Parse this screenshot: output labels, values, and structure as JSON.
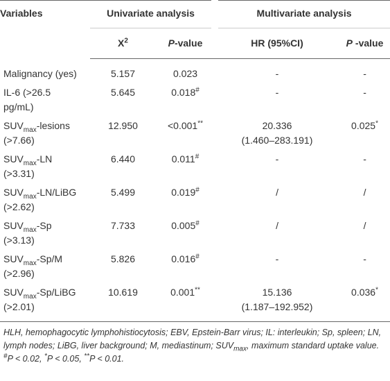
{
  "header": {
    "variables": [
      [
        {
          "text": "Variables"
        }
      ]
    ],
    "groups": [
      [
        [
          {
            "text": "Univariate analysis"
          }
        ]
      ],
      [
        [
          {
            "text": "Multivariate analysis"
          }
        ]
      ]
    ],
    "columns": [
      [
        [
          {
            "text": "X"
          },
          {
            "text": "2",
            "style": "sup"
          }
        ]
      ],
      [
        [
          {
            "text": "P",
            "style": "italic"
          },
          {
            "text": "-value"
          }
        ]
      ],
      [
        [
          {
            "text": "HR (95%CI)"
          }
        ]
      ],
      [
        [
          {
            "text": "P",
            "style": "italic"
          },
          {
            "text": " -value"
          }
        ]
      ]
    ]
  },
  "rows": [
    [
      [
        [
          {
            "text": "Malignancy (yes)"
          }
        ]
      ],
      [
        [
          {
            "text": "5.157"
          }
        ]
      ],
      [
        [
          {
            "text": "0.023"
          }
        ]
      ],
      [
        [
          {
            "text": "-"
          }
        ]
      ],
      [
        [
          {
            "text": "-"
          }
        ]
      ]
    ],
    [
      [
        [
          {
            "text": "IL-6 (>26.5"
          }
        ],
        [
          {
            "text": "pg/mL)"
          }
        ]
      ],
      [
        [
          {
            "text": "5.645"
          }
        ]
      ],
      [
        [
          {
            "text": "0.018"
          },
          {
            "text": "#",
            "style": "sup"
          }
        ]
      ],
      [
        [
          {
            "text": "-"
          }
        ]
      ],
      [
        [
          {
            "text": "-"
          }
        ]
      ]
    ],
    [
      [
        [
          {
            "text": "SUV"
          },
          {
            "text": "max",
            "style": "sub"
          },
          {
            "text": "-lesions"
          }
        ],
        [
          {
            "text": "(>7.66)"
          }
        ]
      ],
      [
        [
          {
            "text": "12.950"
          }
        ]
      ],
      [
        [
          {
            "text": "<0.001"
          },
          {
            "text": "**",
            "style": "sup"
          }
        ]
      ],
      [
        [
          {
            "text": "20.336"
          }
        ],
        [
          {
            "text": "(1.460–283.191)"
          }
        ]
      ],
      [
        [
          {
            "text": "0.025"
          },
          {
            "text": "*",
            "style": "sup"
          }
        ]
      ]
    ],
    [
      [
        [
          {
            "text": "SUV"
          },
          {
            "text": "max",
            "style": "sub"
          },
          {
            "text": "-LN"
          }
        ],
        [
          {
            "text": "(>3.31)"
          }
        ]
      ],
      [
        [
          {
            "text": "6.440"
          }
        ]
      ],
      [
        [
          {
            "text": "0.011"
          },
          {
            "text": "#",
            "style": "sup"
          }
        ]
      ],
      [
        [
          {
            "text": "-"
          }
        ]
      ],
      [
        [
          {
            "text": "-"
          }
        ]
      ]
    ],
    [
      [
        [
          {
            "text": "SUV"
          },
          {
            "text": "max",
            "style": "sub"
          },
          {
            "text": "-LN/LiBG"
          }
        ],
        [
          {
            "text": "(>2.62)"
          }
        ]
      ],
      [
        [
          {
            "text": "5.499"
          }
        ]
      ],
      [
        [
          {
            "text": "0.019"
          },
          {
            "text": "#",
            "style": "sup"
          }
        ]
      ],
      [
        [
          {
            "text": "/"
          }
        ]
      ],
      [
        [
          {
            "text": "/"
          }
        ]
      ]
    ],
    [
      [
        [
          {
            "text": "SUV"
          },
          {
            "text": "max",
            "style": "sub"
          },
          {
            "text": "-Sp"
          }
        ],
        [
          {
            "text": "(>3.13)"
          }
        ]
      ],
      [
        [
          {
            "text": "7.733"
          }
        ]
      ],
      [
        [
          {
            "text": "0.005"
          },
          {
            "text": "#",
            "style": "sup"
          }
        ]
      ],
      [
        [
          {
            "text": "/"
          }
        ]
      ],
      [
        [
          {
            "text": "/"
          }
        ]
      ]
    ],
    [
      [
        [
          {
            "text": "SUV"
          },
          {
            "text": "max",
            "style": "sub"
          },
          {
            "text": "-Sp/M"
          }
        ],
        [
          {
            "text": "(>2.96)"
          }
        ]
      ],
      [
        [
          {
            "text": "5.826"
          }
        ]
      ],
      [
        [
          {
            "text": "0.016"
          },
          {
            "text": "#",
            "style": "sup"
          }
        ]
      ],
      [
        [
          {
            "text": "-"
          }
        ]
      ],
      [
        [
          {
            "text": "-"
          }
        ]
      ]
    ],
    [
      [
        [
          {
            "text": "SUV"
          },
          {
            "text": "max",
            "style": "sub"
          },
          {
            "text": "-Sp/LiBG"
          }
        ],
        [
          {
            "text": "(>2.01)"
          }
        ]
      ],
      [
        [
          {
            "text": "10.619"
          }
        ]
      ],
      [
        [
          {
            "text": "0.001"
          },
          {
            "text": "**",
            "style": "sup"
          }
        ]
      ],
      [
        [
          {
            "text": "15.136"
          }
        ],
        [
          {
            "text": "(1.187–192.952)"
          }
        ]
      ],
      [
        [
          {
            "text": "0.036"
          },
          {
            "text": "*",
            "style": "sup"
          }
        ]
      ]
    ]
  ],
  "footnotes": [
    [
      [
        {
          "text": "HLH, hemophagocytic lymphohistiocytosis; EBV, Epstein-Barr virus; IL: interleukin; Sp, spleen; LN, lymph nodes; LiBG, liver background; M, mediastinum; SUV"
        },
        {
          "text": "max",
          "style": "sub"
        },
        {
          "text": ", maximum standard uptake value."
        }
      ]
    ],
    [
      [
        {
          "text": "#",
          "style": "sup"
        },
        {
          "text": "P < 0.02, "
        },
        {
          "text": "*",
          "style": "sup"
        },
        {
          "text": "P < 0.05, "
        },
        {
          "text": "**",
          "style": "sup"
        },
        {
          "text": "P < 0.01."
        }
      ]
    ]
  ]
}
